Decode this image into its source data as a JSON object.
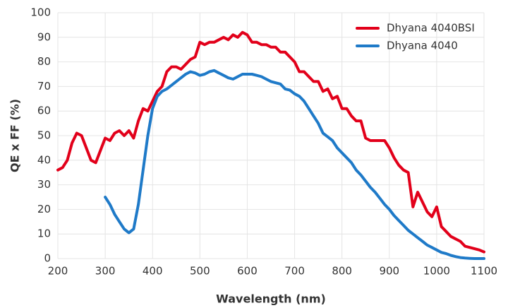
{
  "chart_data": {
    "type": "line",
    "xlabel": "Wavelength (nm)",
    "ylabel": "QE x FF (%)",
    "x": [
      200,
      210,
      220,
      230,
      240,
      250,
      260,
      270,
      280,
      290,
      300,
      310,
      320,
      330,
      340,
      350,
      360,
      370,
      380,
      390,
      400,
      410,
      420,
      430,
      440,
      450,
      460,
      470,
      480,
      490,
      500,
      510,
      520,
      530,
      540,
      550,
      560,
      570,
      580,
      590,
      600,
      610,
      620,
      630,
      640,
      650,
      660,
      670,
      680,
      690,
      700,
      710,
      720,
      730,
      740,
      750,
      760,
      770,
      780,
      790,
      800,
      810,
      820,
      830,
      840,
      850,
      860,
      870,
      880,
      890,
      900,
      910,
      920,
      930,
      940,
      950,
      960,
      970,
      980,
      990,
      1000,
      1010,
      1020,
      1030,
      1040,
      1050,
      1060,
      1070,
      1080,
      1090,
      1100
    ],
    "series": [
      {
        "name": "Dhyana 4040BSI",
        "color": "#e2001a",
        "values": [
          36,
          37,
          40,
          47,
          51,
          50,
          45,
          40,
          39,
          44,
          49,
          48,
          51,
          52,
          50,
          52,
          49,
          56,
          61,
          60,
          64,
          68,
          70,
          76,
          78,
          78,
          77,
          79,
          81,
          82,
          88,
          87,
          88,
          88,
          89,
          90,
          89,
          91,
          90,
          92,
          91,
          88,
          88,
          87,
          87,
          86,
          86,
          84,
          84,
          82,
          80,
          76,
          76,
          74,
          72,
          72,
          68,
          69,
          65,
          66,
          61,
          61,
          58,
          56,
          56,
          49,
          48,
          48,
          48,
          48,
          45,
          41,
          38,
          36,
          35,
          21,
          27,
          23,
          19,
          17,
          21,
          13,
          11,
          9,
          8,
          7,
          5,
          4.5,
          4,
          3.5,
          2.7
        ]
      },
      {
        "name": "Dhyana 4040",
        "color": "#1f7ac8",
        "values": [
          null,
          null,
          null,
          null,
          null,
          null,
          null,
          null,
          null,
          null,
          25,
          22,
          18,
          15,
          12,
          10.5,
          12,
          22,
          36,
          50,
          61,
          66,
          68,
          69,
          70.5,
          72,
          73.5,
          75,
          76,
          75.5,
          74.5,
          75,
          76,
          76.5,
          75.5,
          74.5,
          73.5,
          73,
          74,
          75,
          75,
          75,
          74.5,
          74,
          73,
          72,
          71.5,
          71,
          69,
          68.5,
          67,
          66,
          64,
          61,
          58,
          55,
          51,
          49.5,
          48,
          45,
          43,
          41,
          39,
          36,
          34,
          31.5,
          29,
          27,
          24.5,
          22,
          20,
          17.5,
          15.5,
          13.5,
          11.5,
          10,
          8.5,
          7,
          5.5,
          4.5,
          3.5,
          2.5,
          2,
          1.3,
          0.8,
          0.4,
          0.2,
          0.1,
          0,
          0,
          0
        ]
      }
    ],
    "xlim": [
      200,
      1100
    ],
    "xticks": [
      200,
      300,
      400,
      500,
      600,
      700,
      800,
      900,
      1000,
      1100
    ],
    "ylim": [
      0,
      100
    ],
    "yticks": [
      0,
      10,
      20,
      30,
      40,
      50,
      60,
      70,
      80,
      90,
      100
    ],
    "grid": true,
    "legend": "upper right"
  }
}
